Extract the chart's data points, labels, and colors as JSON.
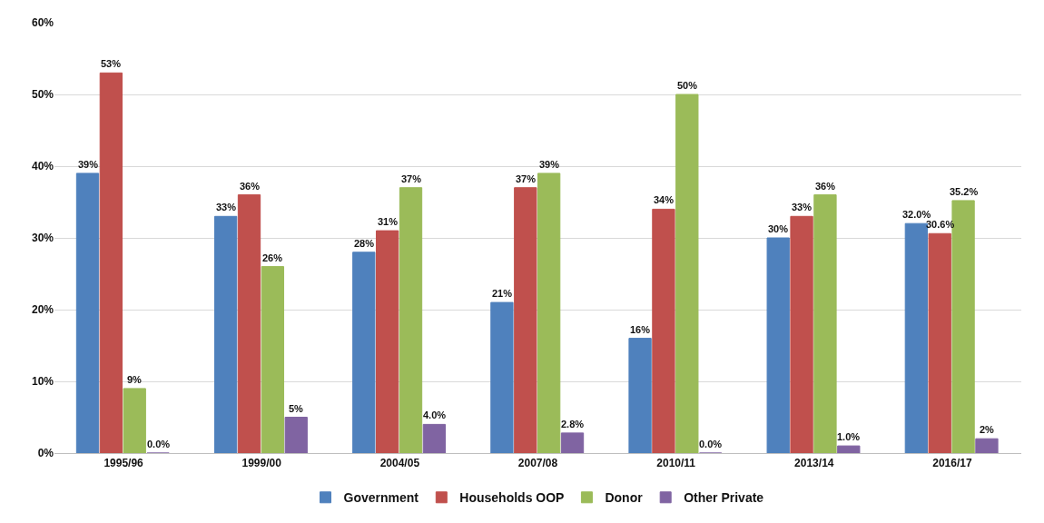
{
  "chart_data": {
    "type": "bar",
    "categories": [
      "1995/96",
      "1999/00",
      "2004/05",
      "2007/08",
      "2010/11",
      "2013/14",
      "2016/17"
    ],
    "series": [
      {
        "name": "Government",
        "color": "#4f81bd",
        "values": [
          39,
          33,
          28,
          21,
          16,
          30,
          32.0
        ],
        "value_labels": [
          "39%",
          "33%",
          "28%",
          "21%",
          "16%",
          "30%",
          "32.0%"
        ]
      },
      {
        "name": "Households OOP",
        "color": "#c0504d",
        "values": [
          53,
          36,
          31,
          37,
          34,
          33,
          30.6
        ],
        "value_labels": [
          "53%",
          "36%",
          "31%",
          "37%",
          "34%",
          "33%",
          "30.6%"
        ]
      },
      {
        "name": "Donor",
        "color": "#9bbb59",
        "values": [
          9,
          26,
          37,
          39,
          50,
          36,
          35.2
        ],
        "value_labels": [
          "9%",
          "26%",
          "37%",
          "39%",
          "50%",
          "36%",
          "35.2%"
        ]
      },
      {
        "name": "Other Private",
        "color": "#8064a2",
        "values": [
          0.0,
          5,
          4.0,
          2.8,
          0.0,
          1.0,
          2
        ],
        "value_labels": [
          "0.0%",
          "5%",
          "4.0%",
          "2.8%",
          "0.0%",
          "1.0%",
          "2%"
        ]
      }
    ],
    "ylim": [
      0,
      60
    ],
    "yticks": [
      {
        "value": 0,
        "label": "0%"
      },
      {
        "value": 10,
        "label": "10%"
      },
      {
        "value": 20,
        "label": "20%"
      },
      {
        "value": 30,
        "label": "30%"
      },
      {
        "value": 40,
        "label": "40%"
      },
      {
        "value": 50,
        "label": "50%"
      },
      {
        "value": 60,
        "label": "60%"
      }
    ],
    "grid": "y",
    "legend": "bottom"
  }
}
